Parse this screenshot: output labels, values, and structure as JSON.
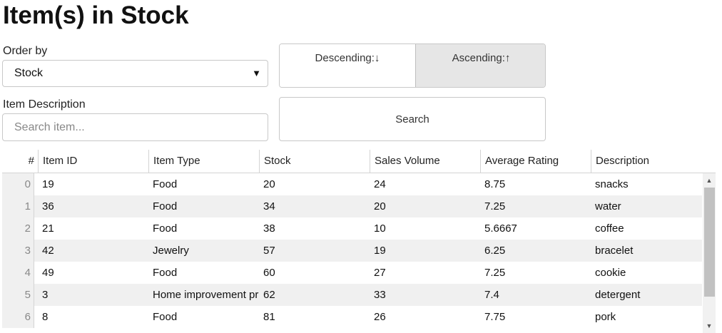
{
  "title": "Item(s) in Stock",
  "order_by": {
    "label": "Order by",
    "selected": "Stock",
    "arrow": "▼"
  },
  "sort_direction": {
    "descending": "Descending:↓",
    "ascending": "Ascending:↑",
    "active": "ascending"
  },
  "item_description": {
    "label": "Item Description",
    "value": "",
    "placeholder": "Search item..."
  },
  "search_button": "Search",
  "table": {
    "columns": [
      "#",
      "Item ID",
      "Item Type",
      "Stock",
      "Sales Volume",
      "Average Rating",
      "Description"
    ],
    "rows": [
      {
        "idx": "0",
        "item_id": "19",
        "item_type": "Food",
        "stock": "20",
        "sales_volume": "24",
        "average_rating": "8.75",
        "description": "snacks"
      },
      {
        "idx": "1",
        "item_id": "36",
        "item_type": "Food",
        "stock": "34",
        "sales_volume": "20",
        "average_rating": "7.25",
        "description": "water"
      },
      {
        "idx": "2",
        "item_id": "21",
        "item_type": "Food",
        "stock": "38",
        "sales_volume": "10",
        "average_rating": "5.6667",
        "description": "coffee"
      },
      {
        "idx": "3",
        "item_id": "42",
        "item_type": "Jewelry",
        "stock": "57",
        "sales_volume": "19",
        "average_rating": "6.25",
        "description": "bracelet"
      },
      {
        "idx": "4",
        "item_id": "49",
        "item_type": "Food",
        "stock": "60",
        "sales_volume": "27",
        "average_rating": "7.25",
        "description": "cookie"
      },
      {
        "idx": "5",
        "item_id": "3",
        "item_type": "Home improvement pr",
        "stock": "62",
        "sales_volume": "33",
        "average_rating": "7.4",
        "description": "detergent"
      },
      {
        "idx": "6",
        "item_id": "8",
        "item_type": "Food",
        "stock": "81",
        "sales_volume": "26",
        "average_rating": "7.75",
        "description": "pork"
      }
    ]
  },
  "scrollbar": {
    "up_icon": "▲",
    "down_icon": "▼"
  }
}
